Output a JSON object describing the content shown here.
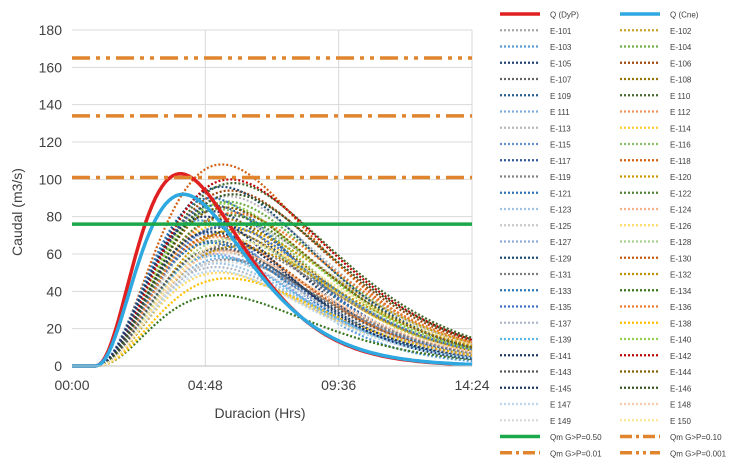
{
  "chart_data": {
    "type": "line",
    "xlabel": "Duracion (Hrs)",
    "ylabel": "Caudal (m3/s)",
    "x_ticks": [
      "00:00",
      "04:48",
      "09:36",
      "14:24"
    ],
    "x_tick_hours": [
      0,
      4.8,
      9.6,
      14.4
    ],
    "xlim_hours": [
      0,
      14.4
    ],
    "ylim": [
      0,
      180
    ],
    "y_ticks": [
      0,
      20,
      40,
      60,
      80,
      100,
      120,
      140,
      160,
      180
    ],
    "grid": true,
    "legend_position": "right",
    "hydrographs": [
      {
        "name": "Q (DyP)",
        "peak_hour": 3.9,
        "peak": 103,
        "color": "#e02020",
        "style": "solid"
      },
      {
        "name": "Q (Cne)",
        "peak_hour": 4.0,
        "peak": 92,
        "color": "#2ea8e0",
        "style": "solid"
      }
    ],
    "storm_series": [
      {
        "name": "E-101",
        "peak_hour": 5.2,
        "peak": 62,
        "color": "#a6a6a6"
      },
      {
        "name": "E-102",
        "peak_hour": 5.5,
        "peak": 72,
        "color": "#c9a227"
      },
      {
        "name": "E-103",
        "peak_hour": 4.6,
        "peak": 78,
        "color": "#5b9bd5"
      },
      {
        "name": "E-104",
        "peak_hour": 5.6,
        "peak": 88,
        "color": "#70ad47"
      },
      {
        "name": "E-105",
        "peak_hour": 5.0,
        "peak": 83,
        "color": "#264478"
      },
      {
        "name": "E-106",
        "peak_hour": 5.7,
        "peak": 94,
        "color": "#9e480e"
      },
      {
        "name": "E-107",
        "peak_hour": 5.3,
        "peak": 74,
        "color": "#636363"
      },
      {
        "name": "E-108",
        "peak_hour": 5.4,
        "peak": 79,
        "color": "#997300"
      },
      {
        "name": "E 109",
        "peak_hour": 5.1,
        "peak": 67,
        "color": "#255e91"
      },
      {
        "name": "E 110",
        "peak_hour": 5.8,
        "peak": 98,
        "color": "#43682b"
      },
      {
        "name": "E 111",
        "peak_hour": 5.5,
        "peak": 58,
        "color": "#7cafdd"
      },
      {
        "name": "E 112",
        "peak_hour": 5.2,
        "peak": 69,
        "color": "#f1975a"
      },
      {
        "name": "E-113",
        "peak_hour": 5.6,
        "peak": 91,
        "color": "#b7b7b7"
      },
      {
        "name": "E-114",
        "peak_hour": 5.4,
        "peak": 76,
        "color": "#ffcd33"
      },
      {
        "name": "E-115",
        "peak_hour": 4.9,
        "peak": 71,
        "color": "#698ed0"
      },
      {
        "name": "E-116",
        "peak_hour": 5.3,
        "peak": 84,
        "color": "#8cc168"
      },
      {
        "name": "E-117",
        "peak_hour": 5.1,
        "peak": 86,
        "color": "#335aa1"
      },
      {
        "name": "E-118",
        "peak_hour": 5.4,
        "peak": 108,
        "color": "#d26012"
      },
      {
        "name": "E-119",
        "peak_hour": 5.7,
        "peak": 65,
        "color": "#848484"
      },
      {
        "name": "E-120",
        "peak_hour": 5.9,
        "peak": 73,
        "color": "#cc9a00"
      },
      {
        "name": "E-121",
        "peak_hour": 5.0,
        "peak": 90,
        "color": "#2f75b5"
      },
      {
        "name": "E-122",
        "peak_hour": 5.6,
        "peak": 81,
        "color": "#548235"
      },
      {
        "name": "E-123",
        "peak_hour": 5.2,
        "peak": 55,
        "color": "#9dc3e6"
      },
      {
        "name": "E-124",
        "peak_hour": 5.5,
        "peak": 62,
        "color": "#f4b183"
      },
      {
        "name": "E-125",
        "peak_hour": 5.8,
        "peak": 77,
        "color": "#c9c9c9"
      },
      {
        "name": "E-126",
        "peak_hour": 5.3,
        "peak": 50,
        "color": "#ffd966"
      },
      {
        "name": "E-127",
        "peak_hour": 5.1,
        "peak": 60,
        "color": "#8faadc"
      },
      {
        "name": "E-128",
        "peak_hour": 5.7,
        "peak": 68,
        "color": "#a9d18e"
      },
      {
        "name": "E-129",
        "peak_hour": 5.4,
        "peak": 96,
        "color": "#1f4e79"
      },
      {
        "name": "E-130",
        "peak_hour": 5.2,
        "peak": 70,
        "color": "#c55a11"
      },
      {
        "name": "E-131",
        "peak_hour": 5.6,
        "peak": 57,
        "color": "#7f7f7f"
      },
      {
        "name": "E-132",
        "peak_hour": 5.9,
        "peak": 64,
        "color": "#bf9000"
      },
      {
        "name": "E-133",
        "peak_hour": 5.0,
        "peak": 66,
        "color": "#2e75b6"
      },
      {
        "name": "E-134",
        "peak_hour": 5.3,
        "peak": 38,
        "color": "#38761d"
      },
      {
        "name": "E-135",
        "peak_hour": 5.5,
        "peak": 75,
        "color": "#4472c4"
      },
      {
        "name": "E-136",
        "peak_hour": 5.8,
        "peak": 82,
        "color": "#ed7d31"
      },
      {
        "name": "E-137",
        "peak_hour": 5.2,
        "peak": 53,
        "color": "#adb9ca"
      },
      {
        "name": "E-138",
        "peak_hour": 5.6,
        "peak": 47,
        "color": "#ffc000"
      },
      {
        "name": "E-139",
        "peak_hour": 5.1,
        "peak": 59,
        "color": "#5ab4e5"
      },
      {
        "name": "E-140",
        "peak_hour": 5.4,
        "peak": 87,
        "color": "#92d050"
      },
      {
        "name": "E-141",
        "peak_hour": 4.8,
        "peak": 80,
        "color": "#203864"
      },
      {
        "name": "E-142",
        "peak_hour": 5.7,
        "peak": 100,
        "color": "#c00000"
      },
      {
        "name": "E-143",
        "peak_hour": 5.3,
        "peak": 63,
        "color": "#595959"
      },
      {
        "name": "E-144",
        "peak_hour": 5.5,
        "peak": 85,
        "color": "#806000"
      },
      {
        "name": "E-145",
        "peak_hour": 5.0,
        "peak": 72,
        "color": "#1f3864"
      },
      {
        "name": "E-146",
        "peak_hour": 5.8,
        "peak": 92,
        "color": "#375623"
      },
      {
        "name": "E 147",
        "peak_hour": 5.2,
        "peak": 51,
        "color": "#bdd7ee"
      },
      {
        "name": "E 148",
        "peak_hour": 5.6,
        "peak": 61,
        "color": "#f8cbad"
      },
      {
        "name": "E 149",
        "peak_hour": 5.4,
        "peak": 56,
        "color": "#d9d9d9"
      },
      {
        "name": "E 150",
        "peak_hour": 5.9,
        "peak": 67,
        "color": "#ffe699"
      }
    ],
    "reference_lines": [
      {
        "name": "Qm G>P=0.50",
        "value": 76,
        "color": "#1aa84a",
        "style": "solid"
      },
      {
        "name": "Qm G>P=0.10",
        "value": 101,
        "color": "#e0852e",
        "style": "dashdot"
      },
      {
        "name": "Qm G>P=0.01",
        "value": 134,
        "color": "#e0852e",
        "style": "dashdot"
      },
      {
        "name": "Qm G>P=0.001",
        "value": 165,
        "color": "#e0852e",
        "style": "dashdotdot"
      }
    ]
  }
}
